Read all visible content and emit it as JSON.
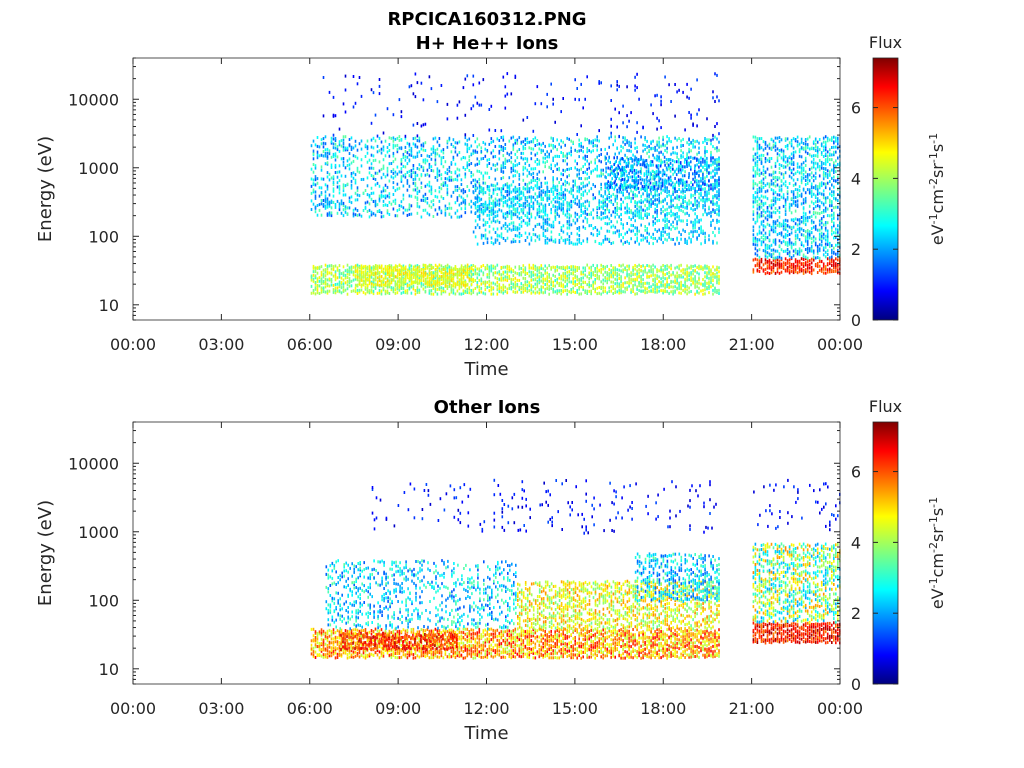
{
  "figure": {
    "file_title": "RPCICA160312.PNG"
  },
  "chart_data": [
    {
      "type": "heatmap",
      "title": "H+ He++ Ions",
      "xlabel": "Time",
      "ylabel": "Energy (eV)",
      "x_ticks": [
        "00:00",
        "03:00",
        "06:00",
        "09:00",
        "12:00",
        "15:00",
        "18:00",
        "21:00",
        "00:00"
      ],
      "x_range_hours": [
        0,
        24
      ],
      "y_scale": "log",
      "y_ticks": [
        "10",
        "100",
        "1000",
        "10000"
      ],
      "y_range": [
        6,
        40000
      ],
      "grid": false,
      "colorbar": {
        "title": "Flux",
        "unit": "eV-1cm-2sr-1s-1",
        "ticks": [
          "0",
          "2",
          "4",
          "6"
        ],
        "range": [
          0,
          7.4
        ],
        "colormap": "jet"
      },
      "data_gap_hours": [
        19.9,
        21.0
      ],
      "bands": [
        {
          "t": [
            6.0,
            19.9
          ],
          "e": [
            15,
            40
          ],
          "flux": [
            3.0,
            4.8
          ],
          "density": 0.75
        },
        {
          "t": [
            7.5,
            11.5
          ],
          "e": [
            20,
            40
          ],
          "flux": [
            4.0,
            5.0
          ],
          "density": 0.8
        },
        {
          "t": [
            6.0,
            19.9
          ],
          "e": [
            200,
            3000
          ],
          "flux": [
            1.5,
            3.5
          ],
          "density": 0.35
        },
        {
          "t": [
            11.5,
            19.9
          ],
          "e": [
            80,
            600
          ],
          "flux": [
            1.8,
            3.2
          ],
          "density": 0.35
        },
        {
          "t": [
            16.0,
            19.9
          ],
          "e": [
            500,
            1500
          ],
          "flux": [
            1.2,
            3.0
          ],
          "density": 0.5
        },
        {
          "t": [
            21.0,
            24.0
          ],
          "e": [
            30,
            50
          ],
          "flux": [
            5.5,
            7.0
          ],
          "density": 0.85
        },
        {
          "t": [
            21.0,
            24.0
          ],
          "e": [
            50,
            3000
          ],
          "flux": [
            1.5,
            3.5
          ],
          "density": 0.55
        },
        {
          "t": [
            6.0,
            19.9
          ],
          "e": [
            3000,
            25000
          ],
          "flux": [
            0.5,
            1.5
          ],
          "density": 0.04
        }
      ]
    },
    {
      "type": "heatmap",
      "title": "Other Ions",
      "xlabel": "Time",
      "ylabel": "Energy (eV)",
      "x_ticks": [
        "00:00",
        "03:00",
        "06:00",
        "09:00",
        "12:00",
        "15:00",
        "18:00",
        "21:00",
        "00:00"
      ],
      "x_range_hours": [
        0,
        24
      ],
      "y_scale": "log",
      "y_ticks": [
        "10",
        "100",
        "1000",
        "10000"
      ],
      "y_range": [
        6,
        40000
      ],
      "grid": false,
      "colorbar": {
        "title": "Flux",
        "unit": "eV-1cm-2sr-1s-1",
        "ticks": [
          "0",
          "2",
          "4",
          "6"
        ],
        "range": [
          0,
          7.4
        ],
        "colormap": "jet"
      },
      "data_gap_hours": [
        19.9,
        21.0
      ],
      "bands": [
        {
          "t": [
            6.0,
            19.9
          ],
          "e": [
            15,
            40
          ],
          "flux": [
            4.0,
            6.5
          ],
          "density": 0.85
        },
        {
          "t": [
            7.0,
            11.0
          ],
          "e": [
            20,
            35
          ],
          "flux": [
            5.5,
            7.0
          ],
          "density": 0.6
        },
        {
          "t": [
            6.5,
            13.0
          ],
          "e": [
            40,
            400
          ],
          "flux": [
            1.5,
            3.5
          ],
          "density": 0.3
        },
        {
          "t": [
            13.0,
            19.9
          ],
          "e": [
            40,
            200
          ],
          "flux": [
            3.5,
            5.5
          ],
          "density": 0.6
        },
        {
          "t": [
            17.0,
            19.9
          ],
          "e": [
            100,
            500
          ],
          "flux": [
            1.5,
            3.5
          ],
          "density": 0.5
        },
        {
          "t": [
            21.0,
            24.0
          ],
          "e": [
            25,
            50
          ],
          "flux": [
            5.5,
            7.2
          ],
          "density": 0.9
        },
        {
          "t": [
            21.0,
            24.0
          ],
          "e": [
            50,
            700
          ],
          "flux": [
            2.0,
            5.5
          ],
          "density": 0.6
        },
        {
          "t": [
            8.0,
            24.0
          ],
          "e": [
            1000,
            6000
          ],
          "flux": [
            0.5,
            1.5
          ],
          "density": 0.05
        }
      ]
    }
  ]
}
